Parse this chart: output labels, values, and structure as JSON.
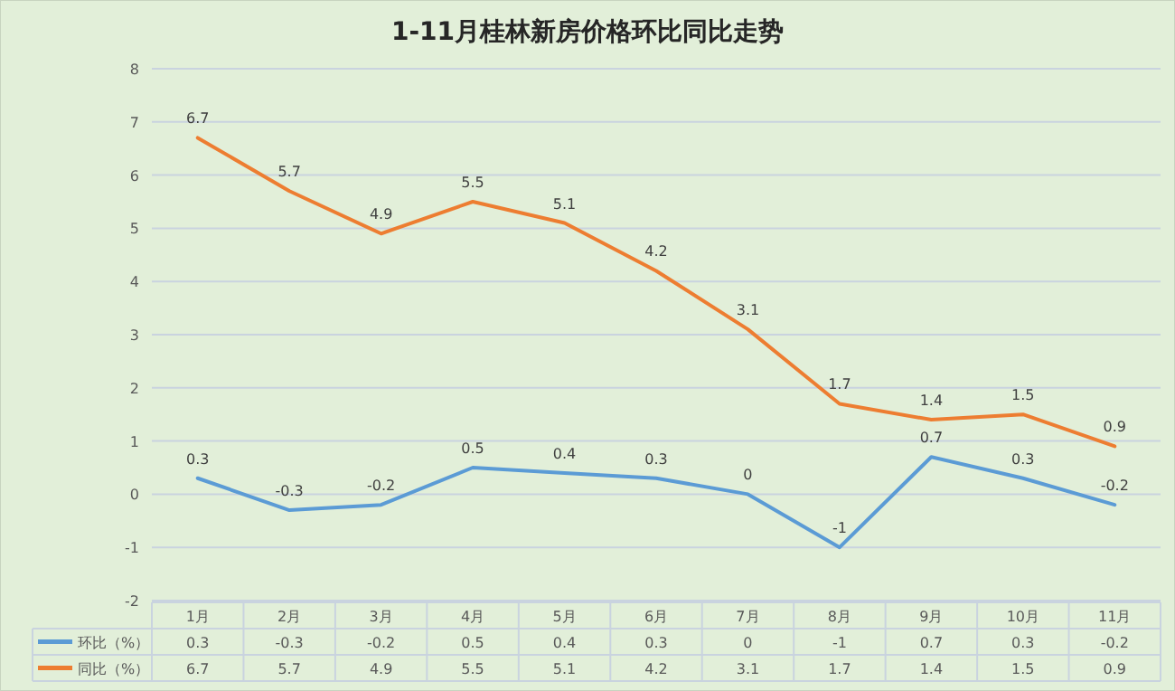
{
  "chart_data": {
    "type": "line",
    "title": "1-11月桂林新房价格环比同比走势",
    "categories": [
      "1月",
      "2月",
      "3月",
      "4月",
      "5月",
      "6月",
      "7月",
      "8月",
      "9月",
      "10月",
      "11月"
    ],
    "series": [
      {
        "name": "环比（%）",
        "color": "#5b9bd5",
        "values": [
          0.3,
          -0.3,
          -0.2,
          0.5,
          0.4,
          0.3,
          0,
          -1,
          0.7,
          0.3,
          -0.2
        ],
        "value_labels": [
          "0.3",
          "-0.3",
          "-0.2",
          "0.5",
          "0.4",
          "0.3",
          "0",
          "-1",
          "0.7",
          "0.3",
          "-0.2"
        ]
      },
      {
        "name": "同比（%）",
        "color": "#ed7d31",
        "values": [
          6.7,
          5.7,
          4.9,
          5.5,
          5.1,
          4.2,
          3.1,
          1.7,
          1.4,
          1.5,
          0.9
        ],
        "value_labels": [
          "6.7",
          "5.7",
          "4.9",
          "5.5",
          "5.1",
          "4.2",
          "3.1",
          "1.7",
          "1.4",
          "1.5",
          "0.9"
        ]
      }
    ],
    "ylim": [
      -2,
      8
    ],
    "yticks": [
      -2,
      -1,
      0,
      1,
      2,
      3,
      4,
      5,
      6,
      7,
      8
    ],
    "annotations": [
      "0.3",
      "-0.3",
      "-0.2",
      "0.5",
      "0.4",
      "0.3",
      "0",
      "-1",
      "0.7",
      "0.3",
      "-0.2",
      "6.7",
      "5.7",
      "4.9",
      "5.5",
      "5.1",
      "4.2",
      "3.1",
      "1.7",
      "1.4",
      "1.5",
      "0.9"
    ],
    "grid": "y",
    "legend": "bottom",
    "data_labels": true,
    "marker": "none",
    "line_style": "solid"
  }
}
